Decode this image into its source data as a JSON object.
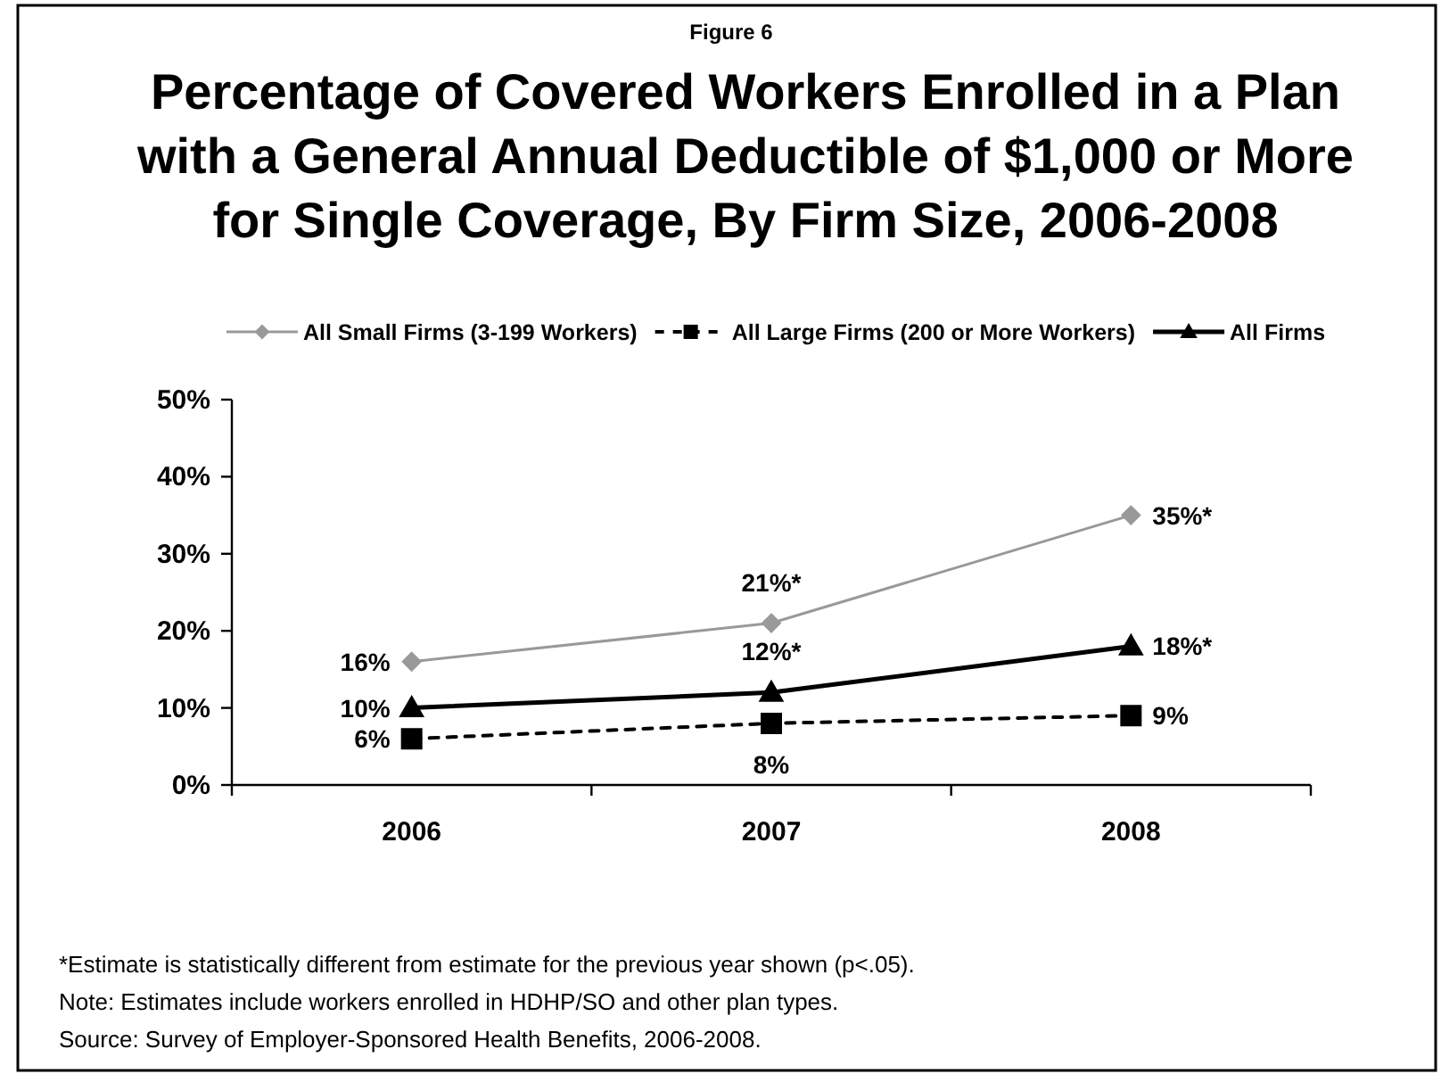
{
  "chart_data": {
    "type": "line",
    "subtitle": "Figure 6",
    "title": "Percentage of Covered Workers Enrolled in a Plan with a General Annual Deductible of $1,000 or More for Single Coverage, By Firm Size, 2006-2008",
    "categories": [
      "2006",
      "2007",
      "2008"
    ],
    "series": [
      {
        "name": "All Small Firms (3-199 Workers)",
        "color": "#999999",
        "marker": "diamond",
        "line_style": "solid",
        "values": [
          16,
          21,
          35
        ],
        "value_labels": [
          "16%",
          "21%*",
          "35%*"
        ]
      },
      {
        "name": "All Large Firms (200 or More Workers)",
        "color": "#000000",
        "marker": "square",
        "line_style": "dashed",
        "values": [
          6,
          8,
          9
        ],
        "value_labels": [
          "6%",
          "8%",
          "9%"
        ]
      },
      {
        "name": "All Firms",
        "color": "#000000",
        "marker": "triangle",
        "line_style": "solid",
        "values": [
          10,
          12,
          18
        ],
        "value_labels": [
          "10%",
          "12%*",
          "18%*"
        ]
      }
    ],
    "ylim": [
      0,
      50
    ],
    "yticks": [
      {
        "value": 0,
        "label": "0%"
      },
      {
        "value": 10,
        "label": "10%"
      },
      {
        "value": 20,
        "label": "20%"
      },
      {
        "value": 30,
        "label": "30%"
      },
      {
        "value": 40,
        "label": "40%"
      },
      {
        "value": 50,
        "label": "50%"
      }
    ],
    "legend": "top",
    "annotations": [
      "*Estimate is statistically different from estimate for the previous year shown (p<.05).",
      "Note: Estimates include workers enrolled in HDHP/SO and other plan types.",
      "Source: Survey of Employer-Sponsored Health Benefits, 2006-2008."
    ]
  }
}
